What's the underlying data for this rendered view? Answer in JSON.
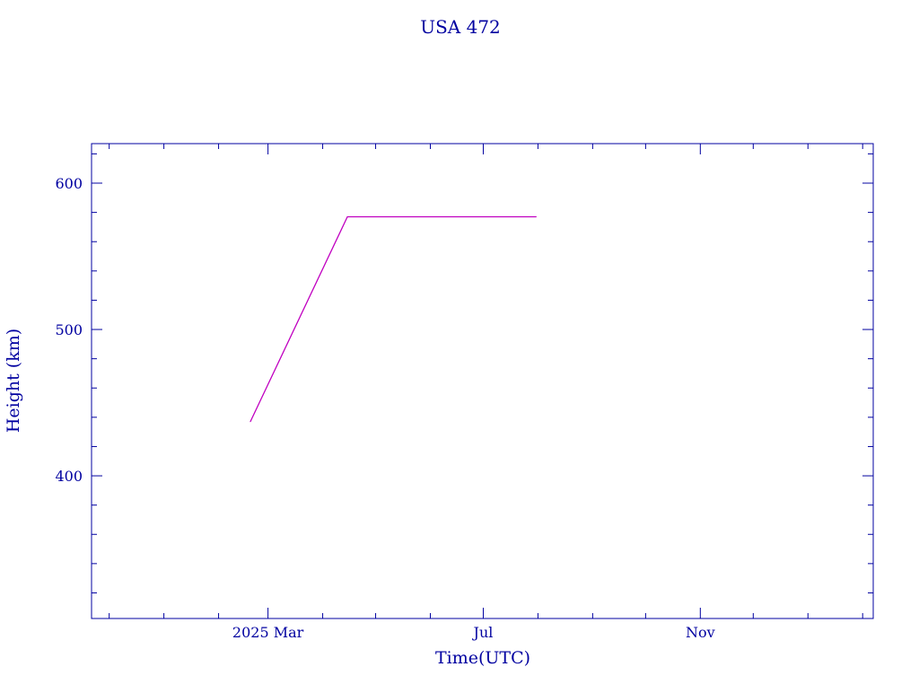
{
  "chart_data": {
    "type": "line",
    "title": "USA 472",
    "xlabel": "Time(UTC)",
    "ylabel": "Height (km)",
    "xlim": [
      "2024-11-21",
      "2026-02-07"
    ],
    "ylim": [
      302.5,
      627
    ],
    "x_tick_labels": [
      {
        "date": "2025-03-01",
        "label": "2025 Mar"
      },
      {
        "date": "2025-07-01",
        "label": "Jul"
      },
      {
        "date": "2025-11-01",
        "label": "Nov"
      }
    ],
    "x_minor_ticks": "monthly",
    "y_ticks": [
      400,
      500,
      600
    ],
    "y_minor_step": 20,
    "grid": false,
    "series": [
      {
        "color": "#c000c0",
        "points": [
          {
            "x": "2025-02-19",
            "y": 437
          },
          {
            "x": "2025-04-15",
            "y": 577
          },
          {
            "x": "2025-07-31",
            "y": 577
          }
        ]
      }
    ],
    "colors": {
      "axis": "#0000a0",
      "text": "#0000a0"
    }
  }
}
